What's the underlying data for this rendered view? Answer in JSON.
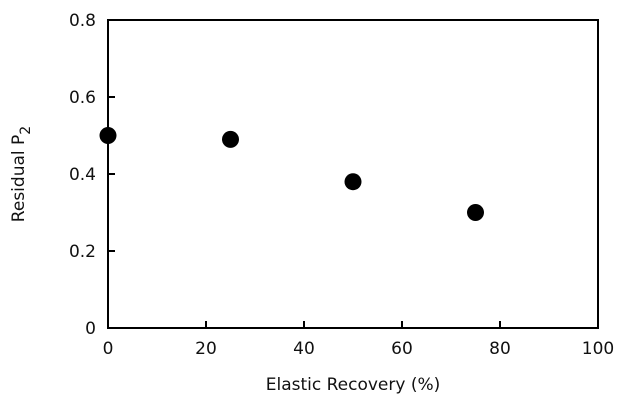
{
  "chart_data": {
    "type": "scatter",
    "title": "",
    "xlabel": "Elastic Recovery (%)",
    "ylabel_main": "Residual  P",
    "ylabel_sub": "2",
    "xlim": [
      0,
      100
    ],
    "ylim": [
      0,
      0.8
    ],
    "x_ticks": [
      0,
      20,
      40,
      60,
      80,
      100
    ],
    "x_tick_labels": [
      "0",
      "20",
      "40",
      "60",
      "80",
      "100"
    ],
    "y_ticks": [
      0,
      0.2,
      0.4,
      0.6,
      0.8
    ],
    "y_tick_labels": [
      "0",
      "0.2",
      "0.4",
      "0.6",
      "0.8"
    ],
    "grid": false,
    "legend": "none",
    "marker_color": "#000000",
    "series": [
      {
        "x": [
          0,
          25,
          50,
          75
        ],
        "y": [
          0.5,
          0.49,
          0.38,
          0.3
        ]
      }
    ]
  }
}
